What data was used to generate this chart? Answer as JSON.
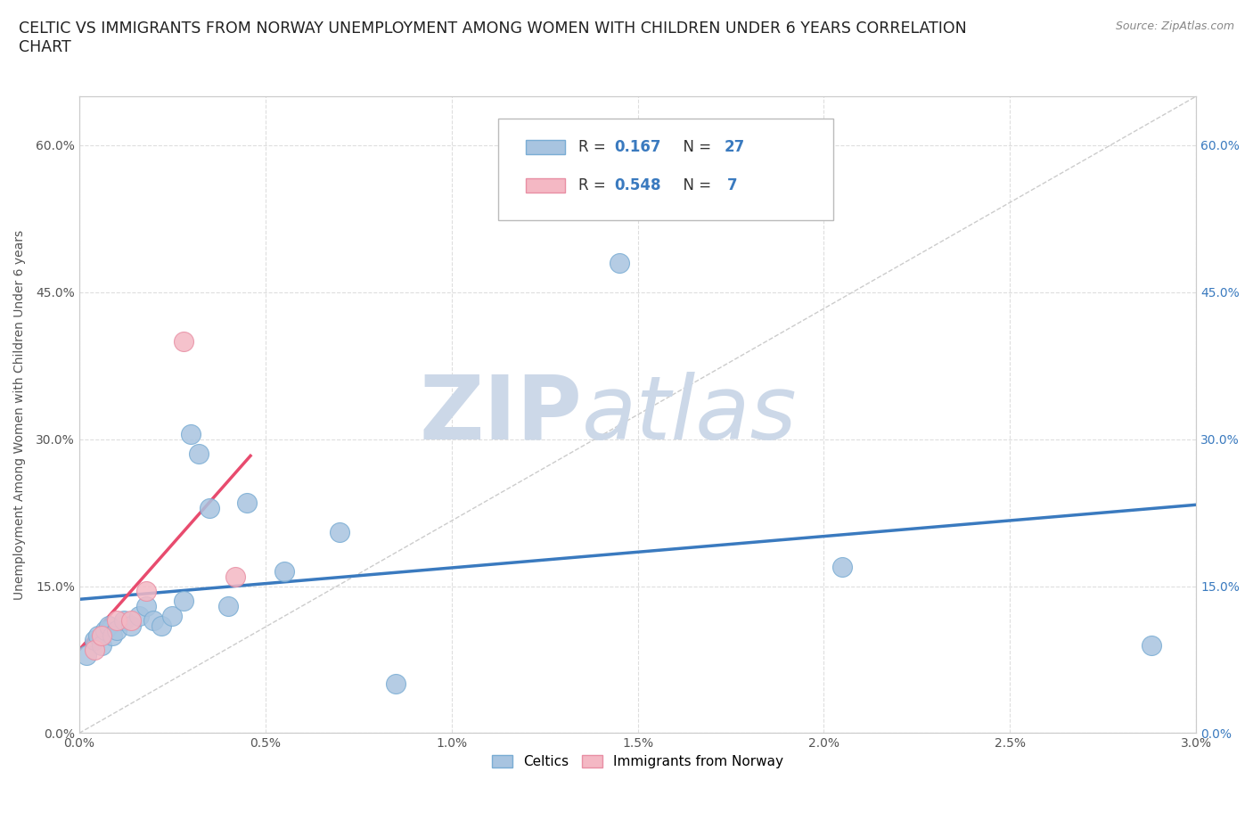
{
  "title": "CELTIC VS IMMIGRANTS FROM NORWAY UNEMPLOYMENT AMONG WOMEN WITH CHILDREN UNDER 6 YEARS CORRELATION\nCHART",
  "source": "Source: ZipAtlas.com",
  "ylabel": "Unemployment Among Women with Children Under 6 years",
  "xlim": [
    0.0,
    3.0
  ],
  "ylim": [
    0.0,
    65.0
  ],
  "xticks": [
    0.0,
    0.5,
    1.0,
    1.5,
    2.0,
    2.5,
    3.0
  ],
  "yticks": [
    0.0,
    15.0,
    30.0,
    45.0,
    60.0
  ],
  "ytick_labels": [
    "0.0%",
    "15.0%",
    "30.0%",
    "45.0%",
    "60.0%"
  ],
  "xtick_labels": [
    "0.0%",
    "0.5%",
    "1.0%",
    "1.5%",
    "2.0%",
    "2.5%",
    "3.0%"
  ],
  "celtics_x": [
    0.02,
    0.04,
    0.05,
    0.06,
    0.07,
    0.08,
    0.09,
    0.1,
    0.12,
    0.14,
    0.16,
    0.18,
    0.2,
    0.22,
    0.25,
    0.28,
    0.3,
    0.32,
    0.35,
    0.4,
    0.45,
    0.55,
    0.7,
    0.85,
    1.45,
    2.05,
    2.88
  ],
  "celtics_y": [
    8.0,
    9.5,
    10.0,
    9.0,
    10.5,
    11.0,
    10.0,
    10.5,
    11.5,
    11.0,
    12.0,
    13.0,
    11.5,
    11.0,
    12.0,
    13.5,
    30.5,
    28.5,
    23.0,
    13.0,
    23.5,
    16.5,
    20.5,
    5.0,
    48.0,
    17.0,
    9.0
  ],
  "norway_x": [
    0.04,
    0.06,
    0.1,
    0.14,
    0.18,
    0.28,
    0.42
  ],
  "norway_y": [
    8.5,
    10.0,
    11.5,
    11.5,
    14.5,
    40.0,
    16.0
  ],
  "celtics_color": "#a8c4e0",
  "norway_color": "#f4b8c4",
  "celtics_edge": "#7aadd4",
  "norway_edge": "#e88fa4",
  "blue_line_color": "#3a7abf",
  "pink_line_color": "#e84b6e",
  "legend_R_celtic": "0.167",
  "legend_N_celtic": "27",
  "legend_R_norway": "0.548",
  "legend_N_norway": "7",
  "watermark_zip": "ZIP",
  "watermark_atlas": "atlas",
  "watermark_color": "#ccd8e8",
  "grid_color": "#dedede",
  "grid_style": "--",
  "background_color": "#ffffff",
  "title_fontsize": 12.5,
  "axis_label_fontsize": 10,
  "tick_fontsize": 10,
  "legend_fontsize": 12,
  "legend_number_color": "#3a7abf",
  "legend_text_color": "#333333"
}
